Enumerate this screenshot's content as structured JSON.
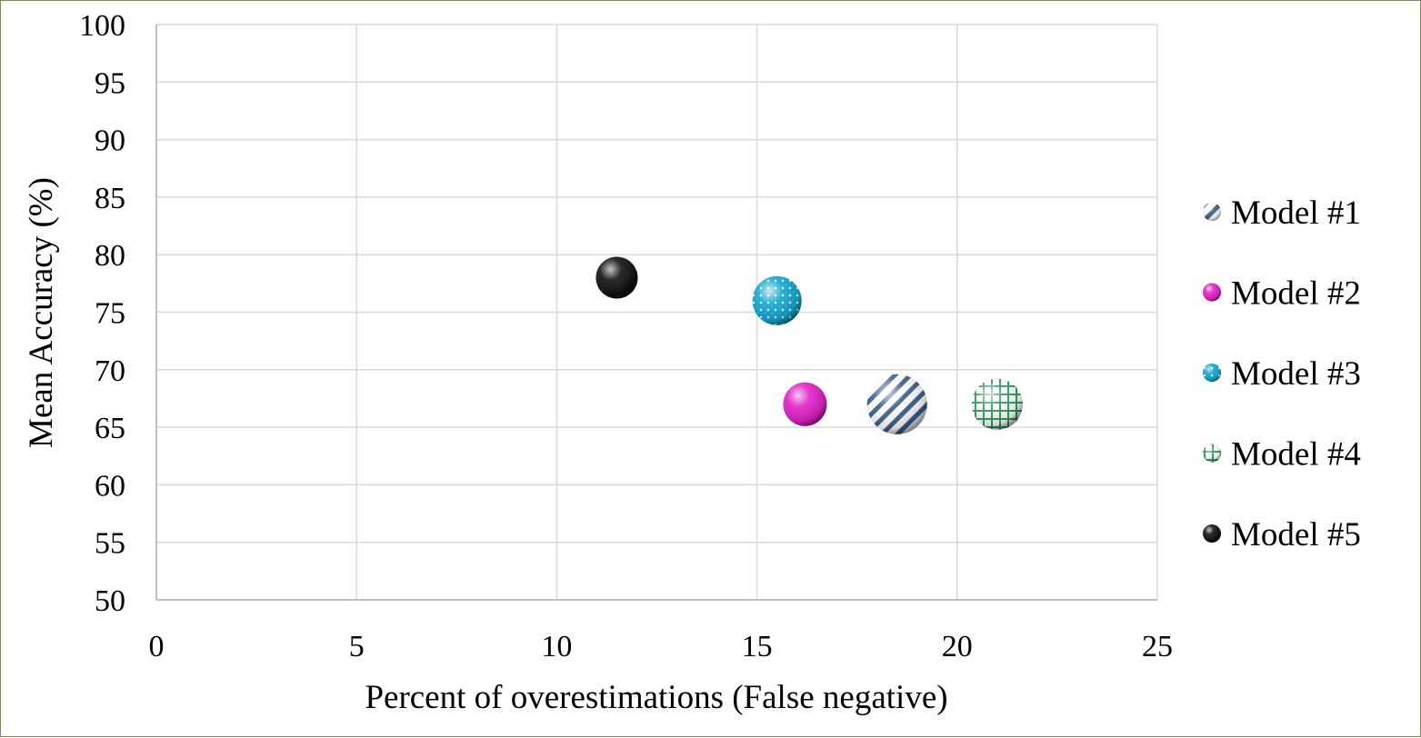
{
  "chart_data": {
    "type": "scatter",
    "title": "",
    "xlabel": "Percent of overestimations (False negative)",
    "ylabel": "Mean Accuracy (%)",
    "xlim": [
      0,
      25
    ],
    "ylim": [
      50,
      100
    ],
    "xticks": [
      "0",
      "5",
      "10",
      "15",
      "20",
      "25"
    ],
    "yticks": [
      "50",
      "55",
      "60",
      "65",
      "70",
      "75",
      "80",
      "85",
      "90",
      "95",
      "100"
    ],
    "grid": true,
    "legend_position": "right",
    "series": [
      {
        "name": "Model #1",
        "x": 18.5,
        "y": 67,
        "color": "#3c5f8e",
        "pattern": "diagonal-stripes"
      },
      {
        "name": "Model #2",
        "x": 16.2,
        "y": 67,
        "color": "#e020c8",
        "pattern": "solid"
      },
      {
        "name": "Model #3",
        "x": 15.5,
        "y": 76,
        "color": "#14a7d2",
        "pattern": "dots"
      },
      {
        "name": "Model #4",
        "x": 21.0,
        "y": 67,
        "color": "#2e9e5a",
        "pattern": "grid"
      },
      {
        "name": "Model #5",
        "x": 11.5,
        "y": 78,
        "color": "#111111",
        "pattern": "solid"
      }
    ]
  }
}
